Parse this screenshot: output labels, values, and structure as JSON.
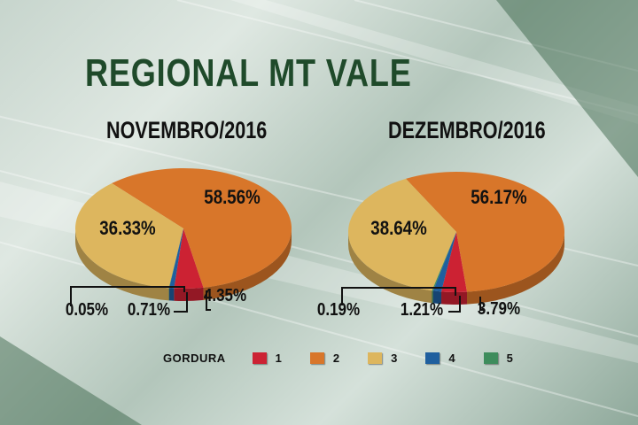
{
  "title": "REGIONAL MT VALE",
  "legend": {
    "title": "GORDURA",
    "items": [
      {
        "label": "1",
        "color": "#cc2233"
      },
      {
        "label": "2",
        "color": "#d8762a"
      },
      {
        "label": "3",
        "color": "#ddb65e"
      },
      {
        "label": "4",
        "color": "#1f5f9e"
      },
      {
        "label": "5",
        "color": "#3e8c5c"
      }
    ]
  },
  "chart_data": [
    {
      "type": "pie",
      "title": "NOVEMBRO/2016",
      "categories": [
        "1",
        "2",
        "3",
        "4",
        "5"
      ],
      "values": [
        4.35,
        58.56,
        36.33,
        0.71,
        0.05
      ],
      "labels": [
        "4.35%",
        "58.56%",
        "36.33%",
        "0.71%",
        "0.05%"
      ]
    },
    {
      "type": "pie",
      "title": "DEZEMBRO/2016",
      "categories": [
        "1",
        "2",
        "3",
        "4",
        "5"
      ],
      "values": [
        3.79,
        56.17,
        38.64,
        1.21,
        0.19
      ],
      "labels": [
        "3.79%",
        "56.17%",
        "38.64%",
        "1.21%",
        "0.19%"
      ]
    }
  ]
}
